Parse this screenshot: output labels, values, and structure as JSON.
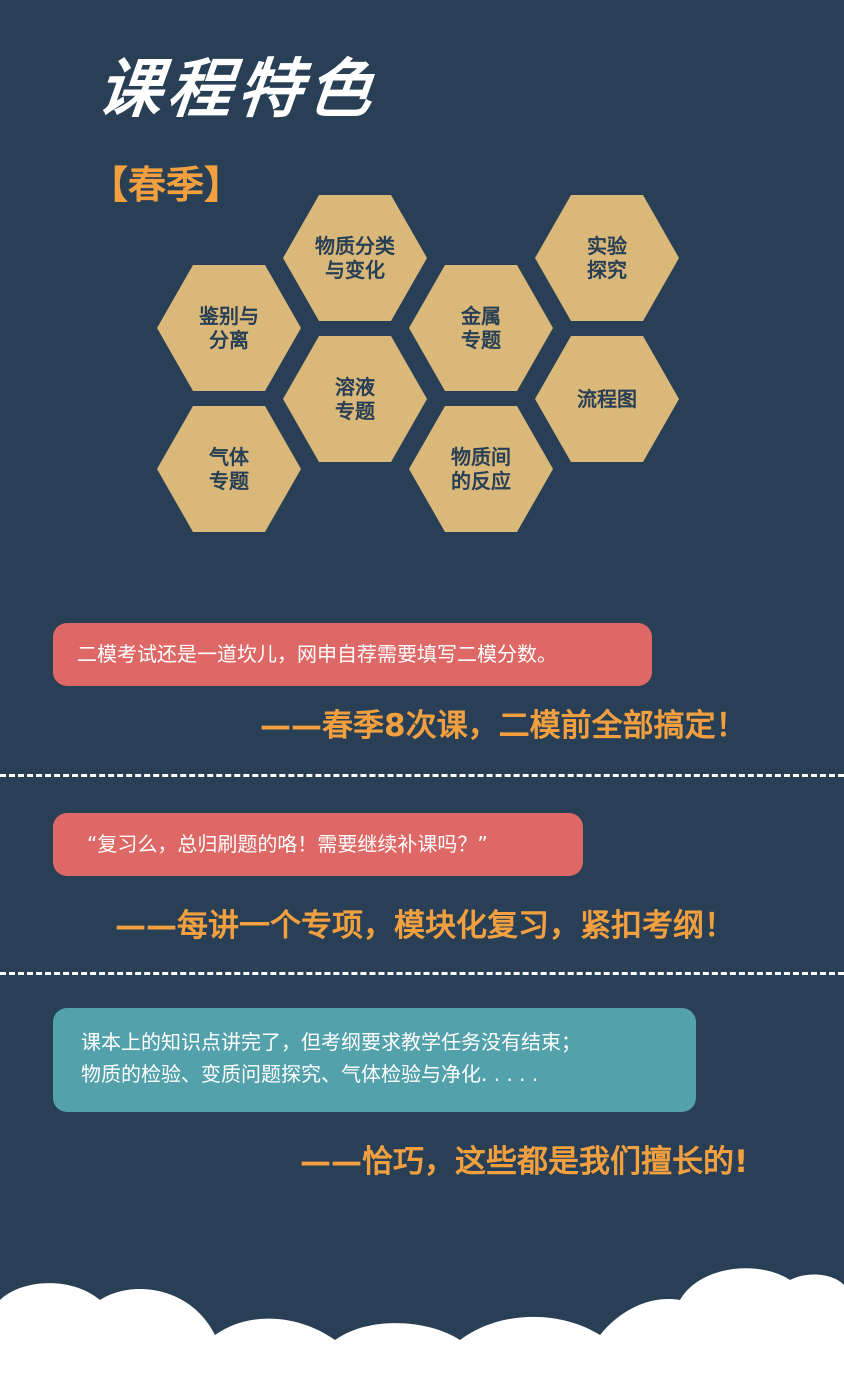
{
  "header": {
    "title": "课程特色",
    "season": "【春季】"
  },
  "topics": [
    {
      "name": "物质分类\n与变化"
    },
    {
      "name": "实验\n探究"
    },
    {
      "name": "鉴别与\n分离"
    },
    {
      "name": "金属\n专题"
    },
    {
      "name": "溶液\n专题"
    },
    {
      "name": "流程图"
    },
    {
      "name": "气体\n专题"
    },
    {
      "name": "物质间\n的反应"
    }
  ],
  "sections": [
    {
      "question": "二模考试还是一道坎儿，网申自荐需要填写二模分数。",
      "answer": "——春季8次课，二模前全部搞定！"
    },
    {
      "question": "“复习么，总归刷题的咯！需要继续补课吗？”",
      "answer": "——每讲一个专项，模块化复习，紧扣考纲！"
    },
    {
      "question_line1": "课本上的知识点讲完了，但考纲要求教学任务没有结束；",
      "question_line2": "物质的检验、变质问题探究、气体检验与净化. . . . .",
      "answer": "——恰巧，这些都是我们擅长的!"
    }
  ],
  "colors": {
    "background": "#283f55",
    "hexagon": "#d9b87a",
    "accent": "#f2a03f",
    "bubble_red": "#de6865",
    "bubble_teal": "#53a1ab",
    "cloud": "#ffffff"
  }
}
